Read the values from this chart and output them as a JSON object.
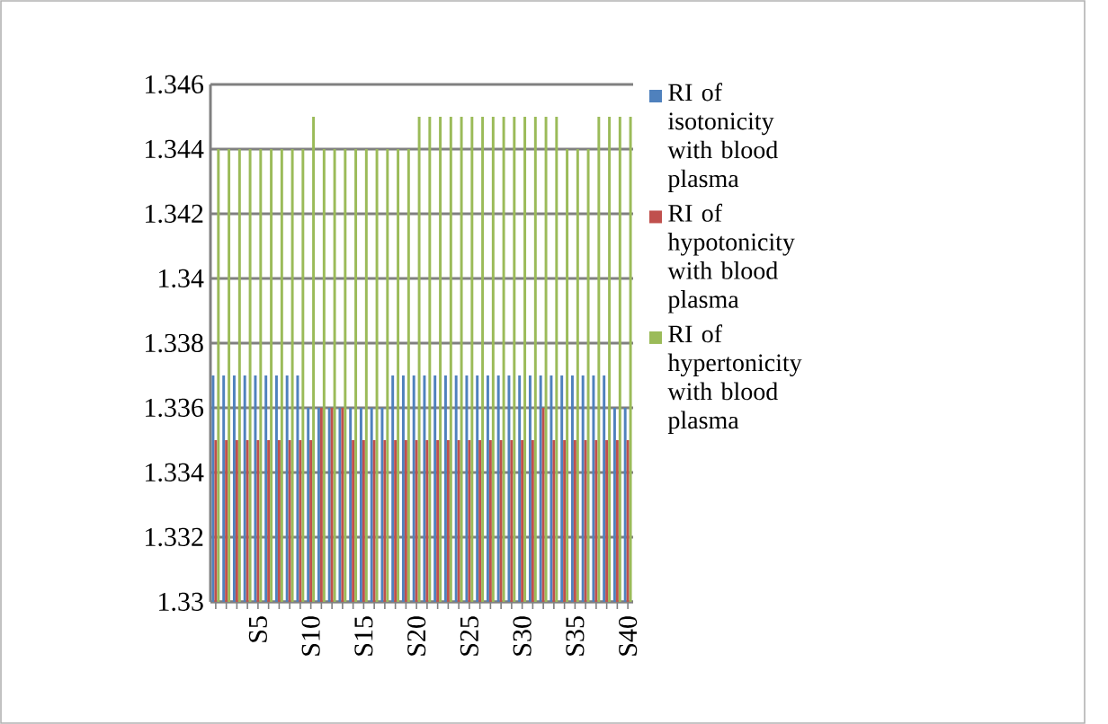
{
  "chart_data": {
    "type": "bar",
    "categories": [
      null,
      null,
      null,
      null,
      "S5",
      null,
      null,
      null,
      null,
      "S10",
      null,
      null,
      null,
      null,
      "S15",
      null,
      null,
      null,
      null,
      "S20",
      null,
      null,
      null,
      null,
      "S25",
      null,
      null,
      null,
      null,
      "S30",
      null,
      null,
      null,
      null,
      "S35",
      null,
      null,
      null,
      null,
      "S40"
    ],
    "series": [
      {
        "name": "RI of isotonicity with blood plasma",
        "color": "#4f81bd",
        "values": [
          1.337,
          1.337,
          1.337,
          1.337,
          1.337,
          1.337,
          1.337,
          1.337,
          1.337,
          1.336,
          1.336,
          1.336,
          1.336,
          1.336,
          1.336,
          1.336,
          1.336,
          1.337,
          1.337,
          1.337,
          1.337,
          1.337,
          1.337,
          1.337,
          1.337,
          1.337,
          1.337,
          1.337,
          1.337,
          1.337,
          1.337,
          1.337,
          1.337,
          1.337,
          1.337,
          1.337,
          1.337,
          1.337,
          1.336,
          1.336
        ]
      },
      {
        "name": "RI of hypotonicity with blood plasma",
        "color": "#c0504d",
        "values": [
          1.335,
          1.335,
          1.335,
          1.335,
          1.335,
          1.335,
          1.335,
          1.335,
          1.335,
          1.335,
          1.336,
          1.336,
          1.336,
          1.335,
          1.335,
          1.335,
          1.335,
          1.335,
          1.335,
          1.335,
          1.335,
          1.335,
          1.335,
          1.335,
          1.335,
          1.335,
          1.335,
          1.335,
          1.335,
          1.335,
          1.335,
          1.336,
          1.335,
          1.335,
          1.335,
          1.335,
          1.335,
          1.335,
          1.335,
          1.335
        ]
      },
      {
        "name": "RI of hypertonicity with blood plasma",
        "color": "#9bbb59",
        "values": [
          1.344,
          1.344,
          1.344,
          1.344,
          1.344,
          1.344,
          1.344,
          1.344,
          1.344,
          1.345,
          1.344,
          1.344,
          1.344,
          1.344,
          1.344,
          1.344,
          1.344,
          1.344,
          1.344,
          1.345,
          1.345,
          1.345,
          1.345,
          1.345,
          1.345,
          1.345,
          1.345,
          1.345,
          1.345,
          1.345,
          1.345,
          1.345,
          1.345,
          1.344,
          1.344,
          1.344,
          1.345,
          1.345,
          1.345,
          1.345
        ]
      }
    ],
    "ylim": [
      1.33,
      1.346
    ],
    "yticks": [
      1.33,
      1.332,
      1.334,
      1.336,
      1.338,
      1.34,
      1.342,
      1.344,
      1.346
    ],
    "grid": "y",
    "legend": "right"
  }
}
